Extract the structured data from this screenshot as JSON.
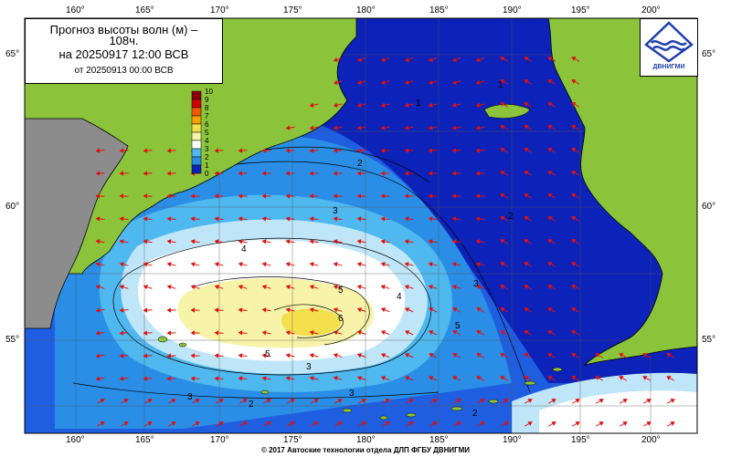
{
  "title": {
    "line1": "Прогноз высоты волн (м) –",
    "line1b": "108ч.",
    "line2": "на 20250917 12:00 ВСВ",
    "line3": "от 20250913 00:00 ВСВ"
  },
  "logo": {
    "name": "ДВНИГМИ",
    "icon": "wave-logo-icon"
  },
  "scale": {
    "labels": [
      "10",
      "9",
      "8",
      "7",
      "6",
      "5",
      "4",
      "3",
      "2",
      "1",
      "0"
    ]
  },
  "axes": {
    "lon_top": [
      "160°",
      "165°",
      "170°",
      "175°",
      "180°",
      "185°",
      "190°",
      "195°",
      "200°"
    ],
    "lon_bottom": [
      "160°",
      "165°",
      "170°",
      "175°",
      "180°",
      "185°",
      "190°",
      "195°",
      "200°"
    ],
    "lat_left": [
      "65°",
      "60°",
      "55°"
    ],
    "lat_right": [
      "65°",
      "60°",
      "55°"
    ]
  },
  "contour_labels": [
    "1",
    "2",
    "3",
    "4",
    "5",
    "6",
    "1",
    "2",
    "3",
    "4",
    "5",
    "5",
    "3",
    "3",
    "2",
    "3",
    "2"
  ],
  "footer": "© 2017 Автоcкие технологии отдела ДЛП ФГБУ ДВНИГМИ",
  "colors": {
    "land": "#8bc43a",
    "land_gray": "#8c8c8c",
    "deep": "#0a1fb0",
    "arrow": "#e01010"
  }
}
